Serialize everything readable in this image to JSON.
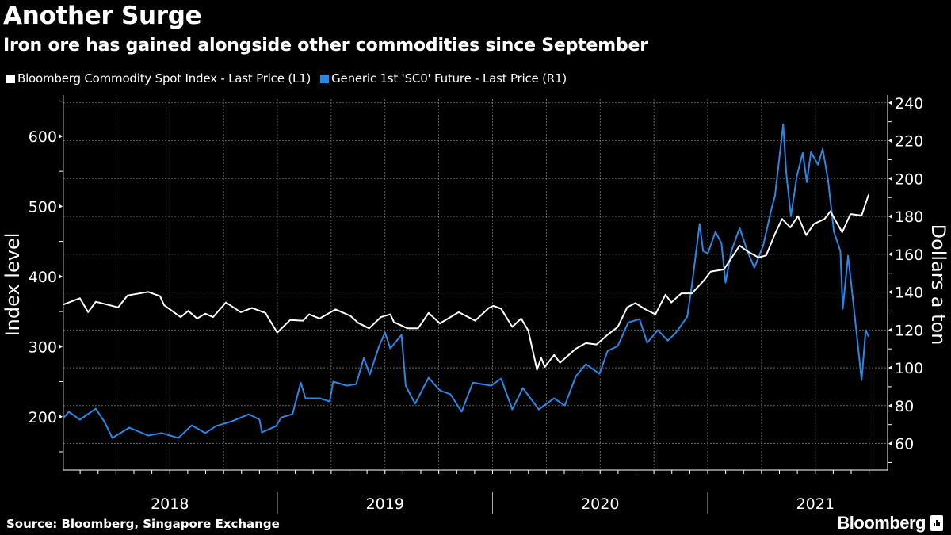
{
  "header": {
    "title": "Another Surge",
    "subtitle": "Iron ore has gained alongside other commodities since September"
  },
  "legend": [
    {
      "label": "Bloomberg Commodity Spot Index - Last Price (L1)",
      "color": "#ffffff"
    },
    {
      "label": "Generic 1st 'SC0' Future - Last Price (R1)",
      "color": "#2b87e6"
    }
  ],
  "footer": {
    "source": "Source: Bloomberg, Singapore Exchange",
    "logo": "Bloomberg"
  },
  "chart_data": {
    "type": "line",
    "title": "Another Surge",
    "subtitle": "Iron ore has gained alongside other commodities since September",
    "background": "#000000",
    "grid": true,
    "legend_position": "top-left",
    "x_axis": {
      "type": "date",
      "range": [
        "2018-01-01",
        "2021-11-01"
      ],
      "tick_labels": [
        "2018",
        "2019",
        "2020",
        "2021"
      ]
    },
    "y_left": {
      "label": "Index level",
      "range": [
        124,
        653
      ],
      "ticks": [
        200,
        300,
        400,
        500,
        600
      ],
      "tick_labels": [
        "200",
        "300",
        "400",
        "500",
        "600"
      ]
    },
    "y_right": {
      "label": "Dollars a ton",
      "range": [
        46,
        242
      ],
      "ticks": [
        60,
        80,
        100,
        120,
        140,
        160,
        180,
        200,
        220,
        240
      ],
      "tick_labels": [
        "60",
        "80",
        "100",
        "120",
        "140",
        "160",
        "180",
        "200",
        "220",
        "240"
      ]
    },
    "series": [
      {
        "name": "Bloomberg Commodity Spot Index - Last Price (L1)",
        "axis": "left",
        "color": "#ffffff",
        "points": [
          [
            "2018-01-03",
            360
          ],
          [
            "2018-01-31",
            369
          ],
          [
            "2018-02-14",
            349
          ],
          [
            "2018-02-27",
            364
          ],
          [
            "2018-04-06",
            356
          ],
          [
            "2018-04-22",
            373
          ],
          [
            "2018-05-27",
            378
          ],
          [
            "2018-06-16",
            372
          ],
          [
            "2018-06-23",
            359
          ],
          [
            "2018-07-21",
            342
          ],
          [
            "2018-08-03",
            351
          ],
          [
            "2018-08-18",
            340
          ],
          [
            "2018-09-01",
            347
          ],
          [
            "2018-09-14",
            342
          ],
          [
            "2018-10-06",
            363
          ],
          [
            "2018-10-31",
            349
          ],
          [
            "2018-11-19",
            355
          ],
          [
            "2018-12-12",
            348
          ],
          [
            "2019-01-01",
            320
          ],
          [
            "2019-01-23",
            338
          ],
          [
            "2019-02-14",
            337
          ],
          [
            "2019-02-24",
            346
          ],
          [
            "2019-03-14",
            340
          ],
          [
            "2019-04-10",
            353
          ],
          [
            "2019-05-05",
            344
          ],
          [
            "2019-05-18",
            334
          ],
          [
            "2019-06-06",
            326
          ],
          [
            "2019-06-26",
            342
          ],
          [
            "2019-07-12",
            346
          ],
          [
            "2019-07-18",
            335
          ],
          [
            "2019-08-10",
            326
          ],
          [
            "2019-08-28",
            326
          ],
          [
            "2019-09-15",
            348
          ],
          [
            "2019-10-04",
            333
          ],
          [
            "2019-11-05",
            349
          ],
          [
            "2019-12-03",
            337
          ],
          [
            "2019-12-26",
            355
          ],
          [
            "2020-01-03",
            358
          ],
          [
            "2020-01-16",
            354
          ],
          [
            "2020-02-04",
            328
          ],
          [
            "2020-02-19",
            340
          ],
          [
            "2020-03-02",
            323
          ],
          [
            "2020-03-17",
            267
          ],
          [
            "2020-03-24",
            284
          ],
          [
            "2020-03-30",
            271
          ],
          [
            "2020-04-15",
            288
          ],
          [
            "2020-04-25",
            277
          ],
          [
            "2020-05-22",
            297
          ],
          [
            "2020-06-08",
            305
          ],
          [
            "2020-06-26",
            303
          ],
          [
            "2020-07-15",
            317
          ],
          [
            "2020-08-01",
            328
          ],
          [
            "2020-08-17",
            356
          ],
          [
            "2020-08-31",
            362
          ],
          [
            "2020-09-15",
            354
          ],
          [
            "2020-10-04",
            346
          ],
          [
            "2020-10-21",
            374
          ],
          [
            "2020-10-31",
            363
          ],
          [
            "2020-11-17",
            376
          ],
          [
            "2020-12-05",
            376
          ],
          [
            "2020-12-24",
            393
          ],
          [
            "2021-01-06",
            407
          ],
          [
            "2021-01-28",
            410
          ],
          [
            "2021-02-06",
            421
          ],
          [
            "2021-02-24",
            444
          ],
          [
            "2021-03-09",
            436
          ],
          [
            "2021-03-28",
            427
          ],
          [
            "2021-04-10",
            430
          ],
          [
            "2021-04-24",
            459
          ],
          [
            "2021-05-07",
            482
          ],
          [
            "2021-05-21",
            470
          ],
          [
            "2021-06-03",
            486
          ],
          [
            "2021-06-17",
            459
          ],
          [
            "2021-06-30",
            475
          ],
          [
            "2021-07-18",
            482
          ],
          [
            "2021-07-28",
            493
          ],
          [
            "2021-08-17",
            463
          ],
          [
            "2021-08-31",
            489
          ],
          [
            "2021-09-19",
            487
          ],
          [
            "2021-10-01",
            517
          ]
        ]
      },
      {
        "name": "Generic 1st 'SC0' Future - Last Price (R1)",
        "axis": "right",
        "color": "#2b87e6",
        "points": [
          [
            "2018-01-03",
            73.4
          ],
          [
            "2018-01-12",
            76.8
          ],
          [
            "2018-01-31",
            72.6
          ],
          [
            "2018-02-27",
            78.4
          ],
          [
            "2018-03-14",
            71.3
          ],
          [
            "2018-03-27",
            62.9
          ],
          [
            "2018-04-25",
            68.4
          ],
          [
            "2018-05-27",
            64.2
          ],
          [
            "2018-06-19",
            65.5
          ],
          [
            "2018-07-17",
            62.9
          ],
          [
            "2018-08-09",
            69.6
          ],
          [
            "2018-09-01",
            65.5
          ],
          [
            "2018-09-19",
            69.2
          ],
          [
            "2018-10-16",
            71.7
          ],
          [
            "2018-11-14",
            75.5
          ],
          [
            "2018-12-02",
            72.6
          ],
          [
            "2018-12-06",
            65.9
          ],
          [
            "2018-12-30",
            69.2
          ],
          [
            "2019-01-08",
            73.8
          ],
          [
            "2019-01-27",
            75.5
          ],
          [
            "2019-02-10",
            92.2
          ],
          [
            "2019-02-18",
            83.9
          ],
          [
            "2019-03-14",
            83.9
          ],
          [
            "2019-03-31",
            82.2
          ],
          [
            "2019-04-06",
            92.7
          ],
          [
            "2019-04-29",
            90.6
          ],
          [
            "2019-05-15",
            91.4
          ],
          [
            "2019-05-28",
            105.2
          ],
          [
            "2019-06-07",
            96.4
          ],
          [
            "2019-06-23",
            111.5
          ],
          [
            "2019-07-03",
            118.6
          ],
          [
            "2019-07-12",
            110.2
          ],
          [
            "2019-07-31",
            117.4
          ],
          [
            "2019-08-07",
            90.6
          ],
          [
            "2019-08-23",
            81.0
          ],
          [
            "2019-09-15",
            94.8
          ],
          [
            "2019-10-04",
            88.1
          ],
          [
            "2019-10-22",
            86.0
          ],
          [
            "2019-11-10",
            76.8
          ],
          [
            "2019-11-29",
            92.2
          ],
          [
            "2019-12-30",
            90.6
          ],
          [
            "2020-01-16",
            94.3
          ],
          [
            "2020-02-04",
            78.0
          ],
          [
            "2020-02-22",
            89.3
          ],
          [
            "2020-03-20",
            78.0
          ],
          [
            "2020-04-15",
            83.9
          ],
          [
            "2020-05-03",
            80.1
          ],
          [
            "2020-05-22",
            95.6
          ],
          [
            "2020-06-08",
            101.9
          ],
          [
            "2020-07-01",
            96.8
          ],
          [
            "2020-07-15",
            109.0
          ],
          [
            "2020-08-01",
            111.5
          ],
          [
            "2020-08-19",
            124.0
          ],
          [
            "2020-09-07",
            125.7
          ],
          [
            "2020-09-20",
            113.2
          ],
          [
            "2020-10-08",
            119.9
          ],
          [
            "2020-10-25",
            114.4
          ],
          [
            "2020-11-08",
            118.6
          ],
          [
            "2020-11-27",
            127.0
          ],
          [
            "2020-12-05",
            143.7
          ],
          [
            "2020-12-18",
            176.0
          ],
          [
            "2020-12-24",
            161.7
          ],
          [
            "2021-01-01",
            160.5
          ],
          [
            "2021-01-14",
            171.8
          ],
          [
            "2021-01-24",
            165.9
          ],
          [
            "2021-01-31",
            145.0
          ],
          [
            "2021-02-10",
            161.7
          ],
          [
            "2021-02-24",
            173.9
          ],
          [
            "2021-03-09",
            161.7
          ],
          [
            "2021-03-21",
            152.9
          ],
          [
            "2021-04-05",
            164.7
          ],
          [
            "2021-04-18",
            182.7
          ],
          [
            "2021-04-25",
            191.0
          ],
          [
            "2021-05-09",
            228.7
          ],
          [
            "2021-05-14",
            203.6
          ],
          [
            "2021-05-22",
            180.1
          ],
          [
            "2021-06-01",
            201.1
          ],
          [
            "2021-06-11",
            213.6
          ],
          [
            "2021-06-18",
            198.1
          ],
          [
            "2021-06-25",
            214.0
          ],
          [
            "2021-07-07",
            207.3
          ],
          [
            "2021-07-15",
            215.7
          ],
          [
            "2021-07-24",
            199.4
          ],
          [
            "2021-08-03",
            171.8
          ],
          [
            "2021-08-14",
            161.7
          ],
          [
            "2021-08-18",
            131.2
          ],
          [
            "2021-08-27",
            159.2
          ],
          [
            "2021-09-05",
            134.1
          ],
          [
            "2021-09-19",
            93.5
          ],
          [
            "2021-09-26",
            119.9
          ],
          [
            "2021-10-01",
            116.5
          ]
        ]
      }
    ]
  }
}
